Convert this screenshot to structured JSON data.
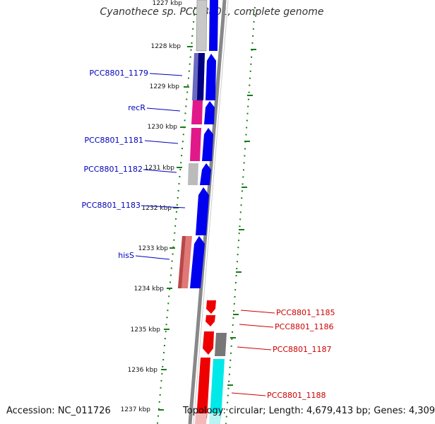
{
  "title": "Cyanothece sp. PCC 8801, complete genome",
  "accession": "Accession: NC_011726",
  "topology": "Topology: circular; Length: 4,679,413 bp; Genes: 4,309",
  "ticks": [
    "1227 kbp",
    "1228 kbp",
    "1229 kbp",
    "1230 kbp",
    "1231 kbp",
    "1232 kbp",
    "1233 kbp",
    "1234 kbp",
    "1235 kbp",
    "1236 kbp",
    "1237 kbp"
  ],
  "colors": {
    "forward_cds": "#0000ee",
    "reverse_cds": "#ee0000",
    "left_label": "#0000bb",
    "right_label": "#cc0000",
    "tick_green": "#1a7a1a"
  },
  "genes_left": [
    {
      "label": "PCC8801_1179"
    },
    {
      "label": "recR"
    },
    {
      "label": "PCC8801_1181"
    },
    {
      "label": "PCC8801_1182"
    },
    {
      "label": "PCC8801_1183"
    },
    {
      "label": "hisS"
    }
  ],
  "genes_right": [
    {
      "label": "PCC8801_1185"
    },
    {
      "label": "PCC8801_1186"
    },
    {
      "label": "PCC8801_1187"
    },
    {
      "label": "PCC8801_1188"
    }
  ]
}
